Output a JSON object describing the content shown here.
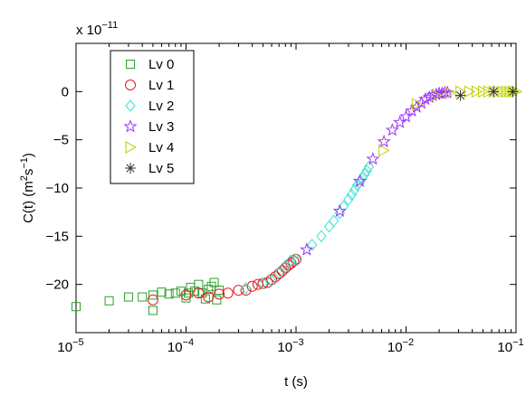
{
  "chart_data": {
    "type": "scatter",
    "x_scale": "log",
    "xlabel": "t (s)",
    "ylabel_main": "C(t) (m",
    "ylabel_sup1": "2",
    "ylabel_mid": "s",
    "ylabel_sup2": "−1",
    "ylabel_end": ")",
    "y_multiplier_base": "x 10",
    "y_multiplier_exp": "−11",
    "xlim": [
      1e-05,
      0.1
    ],
    "ylim": [
      -25,
      5
    ],
    "x_ticks": [
      {
        "value": 1e-05,
        "base": "10",
        "exp": "−5"
      },
      {
        "value": 0.0001,
        "base": "10",
        "exp": "−4"
      },
      {
        "value": 0.001,
        "base": "10",
        "exp": "−3"
      },
      {
        "value": 0.01,
        "base": "10",
        "exp": "−2"
      },
      {
        "value": 0.1,
        "base": "10",
        "exp": "−1"
      }
    ],
    "y_ticks": [
      {
        "value": 0,
        "label": "0"
      },
      {
        "value": -5,
        "label": "−5"
      },
      {
        "value": -10,
        "label": "−10"
      },
      {
        "value": -15,
        "label": "−15"
      },
      {
        "value": -20,
        "label": "−20"
      }
    ],
    "grid": false,
    "legend_position": "top-left",
    "series": [
      {
        "name": "Lv 0",
        "marker": "square",
        "color": "#2ca02c",
        "points": [
          [
            1e-05,
            -22.3
          ],
          [
            2e-05,
            -21.7
          ],
          [
            3e-05,
            -21.3
          ],
          [
            4e-05,
            -21.3
          ],
          [
            5e-05,
            -22.7
          ],
          [
            5e-05,
            -21.1
          ],
          [
            6e-05,
            -20.8
          ],
          [
            7e-05,
            -21.0
          ],
          [
            8e-05,
            -20.9
          ],
          [
            9e-05,
            -20.7
          ],
          [
            0.0001,
            -21.4
          ],
          [
            0.000105,
            -20.9
          ],
          [
            0.00011,
            -20.3
          ],
          [
            0.00012,
            -20.7
          ],
          [
            0.00013,
            -20.0
          ],
          [
            0.00014,
            -20.9
          ],
          [
            0.00015,
            -21.5
          ],
          [
            0.00016,
            -20.5
          ],
          [
            0.00017,
            -20.2
          ],
          [
            0.00018,
            -19.8
          ],
          [
            0.00019,
            -21.6
          ],
          [
            0.0002,
            -20.6
          ]
        ]
      },
      {
        "name": "Lv 1",
        "marker": "circle",
        "color": "#e31a1c",
        "points": [
          [
            5e-05,
            -21.6
          ],
          [
            0.0001,
            -21.1
          ],
          [
            0.00013,
            -20.9
          ],
          [
            0.00016,
            -21.3
          ],
          [
            0.0002,
            -21.0
          ],
          [
            0.00024,
            -20.9
          ],
          [
            0.0003,
            -20.6
          ],
          [
            0.00035,
            -20.6
          ],
          [
            0.0004,
            -20.2
          ],
          [
            0.00045,
            -20.0
          ],
          [
            0.0005,
            -19.9
          ],
          [
            0.00055,
            -19.8
          ],
          [
            0.0006,
            -19.5
          ],
          [
            0.00065,
            -19.2
          ],
          [
            0.0007,
            -18.9
          ],
          [
            0.00075,
            -18.6
          ],
          [
            0.0008,
            -18.3
          ],
          [
            0.00085,
            -18.0
          ],
          [
            0.0009,
            -17.8
          ],
          [
            0.00095,
            -17.6
          ],
          [
            0.001,
            -17.4
          ]
        ]
      },
      {
        "name": "Lv 2",
        "marker": "diamond",
        "color": "#40e0d0",
        "points": [
          [
            0.00035,
            -20.4
          ],
          [
            0.0005,
            -19.9
          ],
          [
            0.0006,
            -19.6
          ],
          [
            0.0007,
            -18.8
          ],
          [
            0.0008,
            -18.2
          ],
          [
            0.0009,
            -17.5
          ],
          [
            0.001,
            -17.4
          ],
          [
            0.0014,
            -15.9
          ],
          [
            0.0017,
            -15.0
          ],
          [
            0.002,
            -14.0
          ],
          [
            0.0022,
            -13.4
          ],
          [
            0.0025,
            -12.6
          ],
          [
            0.0027,
            -11.9
          ],
          [
            0.003,
            -11.2
          ],
          [
            0.0032,
            -10.7
          ],
          [
            0.0034,
            -10.2
          ],
          [
            0.0036,
            -9.7
          ],
          [
            0.0038,
            -9.4
          ],
          [
            0.004,
            -9.0
          ],
          [
            0.0042,
            -8.6
          ],
          [
            0.0044,
            -8.2
          ],
          [
            0.0046,
            -7.8
          ]
        ]
      },
      {
        "name": "Lv 3",
        "marker": "star",
        "color": "#9b30ff",
        "points": [
          [
            0.00125,
            -16.4
          ],
          [
            0.0025,
            -12.4
          ],
          [
            0.0038,
            -9.3
          ],
          [
            0.005,
            -7.0
          ],
          [
            0.0063,
            -5.2
          ],
          [
            0.0075,
            -4.0
          ],
          [
            0.0088,
            -3.2
          ],
          [
            0.01,
            -2.6
          ],
          [
            0.0113,
            -2.0
          ],
          [
            0.0125,
            -1.6
          ],
          [
            0.0138,
            -1.2
          ],
          [
            0.015,
            -0.8
          ],
          [
            0.0163,
            -0.6
          ],
          [
            0.0175,
            -0.4
          ],
          [
            0.0188,
            -0.3
          ],
          [
            0.02,
            -0.2
          ],
          [
            0.0213,
            -0.2
          ],
          [
            0.0225,
            -0.1
          ],
          [
            0.0238,
            -0.1
          ]
        ]
      },
      {
        "name": "Lv 4",
        "marker": "triangle-right",
        "color": "#bfcf00",
        "points": [
          [
            0.00625,
            -6.1
          ],
          [
            0.0125,
            -1.3
          ],
          [
            0.01875,
            -0.4
          ],
          [
            0.025,
            -0.1
          ],
          [
            0.03125,
            0.0
          ],
          [
            0.0375,
            0.0
          ],
          [
            0.04375,
            0.0
          ],
          [
            0.05,
            0.0
          ],
          [
            0.05625,
            0.0
          ],
          [
            0.0625,
            0.0
          ],
          [
            0.06875,
            0.0
          ],
          [
            0.075,
            0.0
          ],
          [
            0.08125,
            0.0
          ],
          [
            0.0875,
            0.0
          ],
          [
            0.09375,
            0.0
          ],
          [
            0.1,
            0.0
          ]
        ]
      },
      {
        "name": "Lv 5",
        "marker": "asterisk",
        "color": "#333333",
        "points": [
          [
            0.03125,
            -0.4
          ],
          [
            0.0625,
            0.0
          ],
          [
            0.09375,
            0.0
          ]
        ]
      }
    ]
  }
}
